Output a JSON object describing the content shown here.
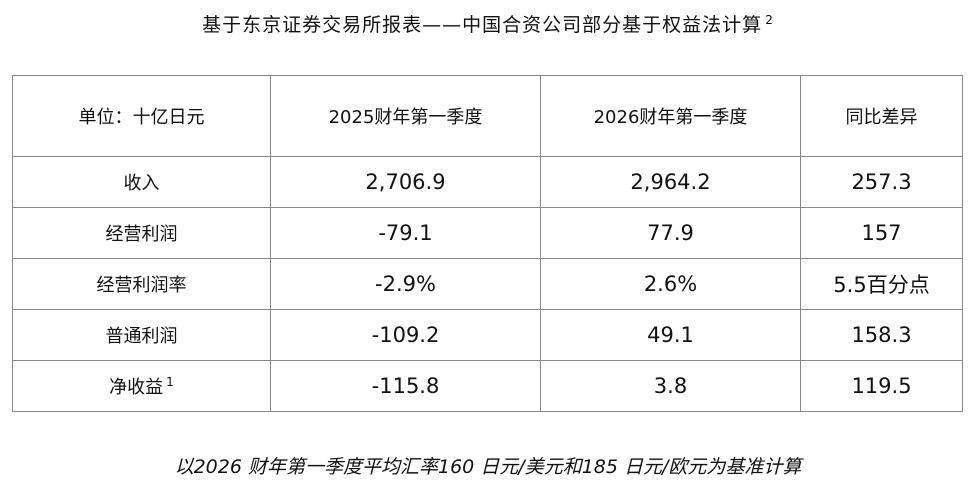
{
  "header": {
    "title": "基于东京证券交易所报表——中国合资公司部分基于权益法计算",
    "title_note": "2"
  },
  "table": {
    "columns": [
      "单位：十亿日元",
      "2025财年第一季度",
      "2026财年第一季度",
      "同比差异"
    ],
    "rows": [
      {
        "label": "收入",
        "cells": [
          "2,706.9",
          "2,964.2",
          "257.3"
        ]
      },
      {
        "label": "经营利润",
        "cells": [
          "-79.1",
          "77.9",
          "157"
        ]
      },
      {
        "label": "经营利润率",
        "cells": [
          "-2.9%",
          "2.6%",
          "5.5百分点"
        ]
      },
      {
        "label": "普通利润",
        "cells": [
          "-109.2",
          "49.1",
          "158.3"
        ]
      },
      {
        "label": "净收益",
        "note": "1",
        "cells": [
          "-115.8",
          "3.8",
          "119.5"
        ]
      }
    ]
  },
  "footnote": "以2026 财年第一季度平均汇率160 日元/美元和185 日元/欧元为基准计算"
}
